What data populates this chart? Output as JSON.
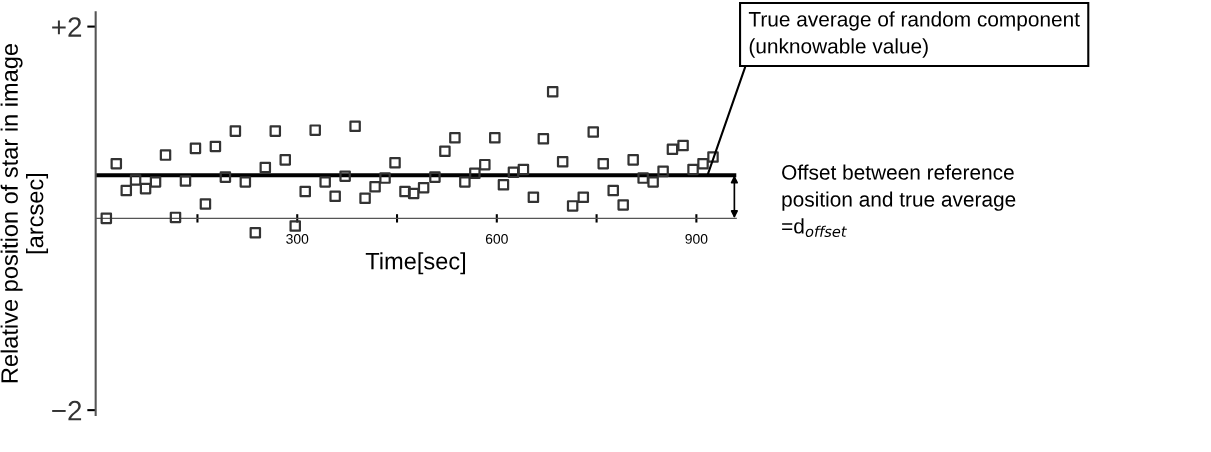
{
  "chart_data": {
    "type": "scatter",
    "xlabel": "Time[sec]",
    "ylabel": "Relative position of star in image\n[arcsec]",
    "x": [
      13,
      28,
      43,
      57,
      72,
      87,
      102,
      117,
      132,
      147,
      162,
      177,
      192,
      207,
      222,
      237,
      252,
      267,
      282,
      297,
      312,
      327,
      342,
      357,
      372,
      387,
      402,
      417,
      432,
      447,
      462,
      475,
      490,
      507,
      522,
      537,
      552,
      567,
      582,
      597,
      610,
      625,
      640,
      655,
      670,
      684,
      699,
      714,
      730,
      745,
      760,
      775,
      790,
      805,
      820,
      835,
      850,
      864,
      880,
      895,
      910,
      925
    ],
    "series": [
      {
        "color": "#333333",
        "marker": "square",
        "values": [
          0.0,
          0.57,
          0.29,
          0.4,
          0.31,
          0.38,
          0.66,
          0.01,
          0.39,
          0.73,
          0.15,
          0.75,
          0.43,
          0.91,
          0.38,
          -0.15,
          0.53,
          0.91,
          0.61,
          -0.08,
          0.28,
          0.92,
          0.38,
          0.23,
          0.44,
          0.96,
          0.21,
          0.33,
          0.42,
          0.58,
          0.28,
          0.26,
          0.32,
          0.43,
          0.7,
          0.84,
          0.38,
          0.47,
          0.56,
          0.84,
          0.35,
          0.48,
          0.51,
          0.22,
          0.83,
          1.32,
          0.59,
          0.13,
          0.22,
          0.9,
          0.57,
          0.29,
          0.14,
          0.61,
          0.42,
          0.38,
          0.49,
          0.72,
          0.76,
          0.51,
          0.57,
          0.64
        ]
      }
    ],
    "xlim": [
      -3,
      960
    ],
    "ylim": [
      -2.05,
      2.15
    ],
    "xticks": [
      {
        "value": 150,
        "label": null
      },
      300,
      {
        "value": 450,
        "label": null
      },
      600,
      {
        "value": 750,
        "label": null
      },
      900
    ],
    "yticks": [
      {
        "value": -2,
        "label": "−2"
      },
      {
        "value": 2,
        "label": "+2"
      }
    ],
    "ref_lines": [
      {
        "axis": "y",
        "value": 0.45,
        "label": "True average of random component\n(unknowable value)",
        "color": "#000000"
      }
    ],
    "annotations": [
      "Offset between reference\nposition and true average\n=d$_{offset}$"
    ],
    "grid": false
  }
}
